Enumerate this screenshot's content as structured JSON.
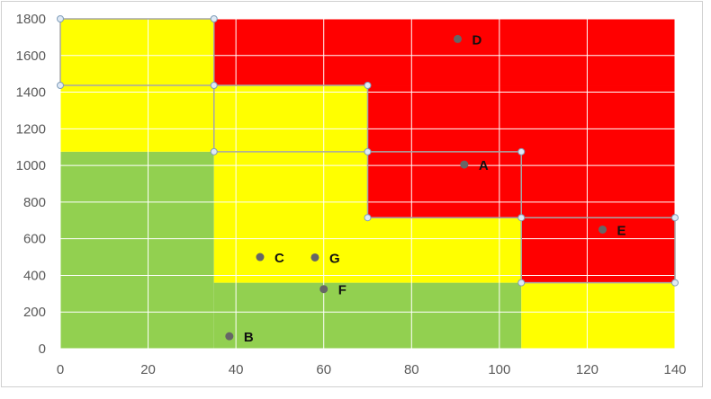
{
  "chart_data": {
    "type": "scatter",
    "xlim": [
      0,
      140
    ],
    "ylim": [
      0,
      1800
    ],
    "x_ticks": [
      "0",
      "20",
      "40",
      "60",
      "80",
      "100",
      "120",
      "140"
    ],
    "y_ticks": [
      "0",
      "200",
      "400",
      "600",
      "800",
      "1000",
      "1200",
      "1400",
      "1600",
      "1800"
    ],
    "grid": true,
    "background_zones": [
      {
        "x": [
          0,
          35
        ],
        "y": [
          0,
          1075
        ],
        "color": "#92d050"
      },
      {
        "x": [
          35,
          105
        ],
        "y": [
          0,
          360
        ],
        "color": "#92d050"
      },
      {
        "x": [
          0,
          35
        ],
        "y": [
          1075,
          1800
        ],
        "color": "#ffff00"
      },
      {
        "x": [
          35,
          70
        ],
        "y": [
          360,
          1437
        ],
        "color": "#ffff00"
      },
      {
        "x": [
          70,
          105
        ],
        "y": [
          360,
          715
        ],
        "color": "#ffff00"
      },
      {
        "x": [
          105,
          140
        ],
        "y": [
          0,
          360
        ],
        "color": "#ffff00"
      },
      {
        "x": [
          35,
          140
        ],
        "y": [
          1437,
          1800
        ],
        "color": "#ff0000"
      },
      {
        "x": [
          70,
          140
        ],
        "y": [
          715,
          1437
        ],
        "color": "#ff0000"
      },
      {
        "x": [
          105,
          140
        ],
        "y": [
          360,
          715
        ],
        "color": "#ff0000"
      }
    ],
    "boundary_lines": [
      {
        "points": [
          [
            0,
            1437
          ],
          [
            0,
            1800
          ],
          [
            35,
            1800
          ],
          [
            35,
            1437
          ],
          [
            70,
            1437
          ],
          [
            70,
            715
          ],
          [
            105,
            715
          ],
          [
            105,
            360
          ],
          [
            140,
            360
          ],
          [
            140,
            715
          ],
          [
            105,
            715
          ]
        ]
      },
      {
        "points": [
          [
            0,
            1437
          ],
          [
            35,
            1437
          ],
          [
            35,
            1075
          ],
          [
            70,
            1075
          ],
          [
            105,
            1075
          ],
          [
            105,
            715
          ]
        ]
      }
    ],
    "points": [
      {
        "label": "A",
        "x": 92,
        "y": 1005
      },
      {
        "label": "B",
        "x": 38.5,
        "y": 68
      },
      {
        "label": "C",
        "x": 45.5,
        "y": 500
      },
      {
        "label": "D",
        "x": 90.5,
        "y": 1690
      },
      {
        "label": "E",
        "x": 123.5,
        "y": 650
      },
      {
        "label": "F",
        "x": 60,
        "y": 325
      },
      {
        "label": "G",
        "x": 58,
        "y": 498
      }
    ],
    "colors": {
      "green": "#92d050",
      "yellow": "#ffff00",
      "red": "#ff0000",
      "grid": "#ffffff",
      "marker": "#666666",
      "boundary": "#a6a6a6",
      "handle_fill": "#dfe9f5",
      "handle_stroke": "#7f9db9"
    }
  }
}
